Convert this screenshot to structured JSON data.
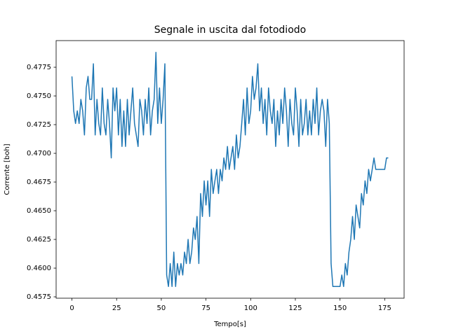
{
  "chart_data": {
    "type": "line",
    "title": "Segnale in uscita dal fotodiodo",
    "x_label": "Tempo[s]",
    "y_label": "Corrente [boh]",
    "color": "#1f77b4",
    "x": [
      0,
      1,
      2,
      3,
      4,
      5,
      6,
      7,
      8,
      9,
      10,
      11,
      12,
      13,
      14,
      15,
      16,
      17,
      18,
      19,
      20,
      21,
      22,
      23,
      24,
      25,
      26,
      27,
      28,
      29,
      30,
      31,
      32,
      33,
      34,
      35,
      36,
      37,
      38,
      39,
      40,
      41,
      42,
      43,
      44,
      45,
      46,
      47,
      48,
      49,
      50,
      51,
      52,
      53,
      54,
      55,
      56,
      57,
      58,
      59,
      60,
      61,
      62,
      63,
      64,
      65,
      66,
      67,
      68,
      69,
      70,
      71,
      72,
      73,
      74,
      75,
      76,
      77,
      78,
      79,
      80,
      81,
      82,
      83,
      84,
      85,
      86,
      87,
      88,
      89,
      90,
      91,
      92,
      93,
      94,
      95,
      96,
      97,
      98,
      99,
      100,
      101,
      102,
      103,
      104,
      105,
      106,
      107,
      108,
      109,
      110,
      111,
      112,
      113,
      114,
      115,
      116,
      117,
      118,
      119,
      120,
      121,
      122,
      123,
      124,
      125,
      126,
      127,
      128,
      129,
      130,
      131,
      132,
      133,
      134,
      135,
      136,
      137,
      138,
      139,
      140,
      141,
      142,
      143,
      144,
      145,
      146,
      147,
      148,
      149,
      150,
      151,
      152,
      153,
      154,
      155,
      156,
      157,
      158,
      159,
      160,
      161,
      162,
      163,
      164,
      165,
      166,
      167,
      168,
      169,
      170,
      171,
      172,
      173,
      174,
      175,
      176,
      177
    ],
    "values": [
      0.4767,
      0.4737,
      0.4726,
      0.4737,
      0.4726,
      0.4747,
      0.4737,
      0.4716,
      0.4757,
      0.4767,
      0.4747,
      0.4747,
      0.4778,
      0.4716,
      0.4747,
      0.4726,
      0.4716,
      0.4757,
      0.4726,
      0.4716,
      0.4747,
      0.4726,
      0.4696,
      0.4757,
      0.4737,
      0.4757,
      0.4716,
      0.4747,
      0.4706,
      0.4737,
      0.4706,
      0.4747,
      0.4716,
      0.4737,
      0.4757,
      0.4726,
      0.4716,
      0.4706,
      0.4747,
      0.4737,
      0.4716,
      0.4747,
      0.4726,
      0.4757,
      0.4716,
      0.4737,
      0.4747,
      0.4788,
      0.4726,
      0.4757,
      0.4726,
      0.4747,
      0.4778,
      0.4594,
      0.4584,
      0.4604,
      0.4584,
      0.4614,
      0.4584,
      0.4604,
      0.4594,
      0.4604,
      0.4594,
      0.4614,
      0.4604,
      0.4625,
      0.4604,
      0.4614,
      0.4635,
      0.4625,
      0.4645,
      0.4604,
      0.4665,
      0.4645,
      0.4676,
      0.4655,
      0.4676,
      0.4645,
      0.4686,
      0.4665,
      0.4676,
      0.4686,
      0.4665,
      0.4686,
      0.4676,
      0.4696,
      0.4686,
      0.4706,
      0.4686,
      0.4696,
      0.4706,
      0.4686,
      0.4716,
      0.4696,
      0.4706,
      0.4726,
      0.4747,
      0.4716,
      0.4757,
      0.4726,
      0.4737,
      0.4767,
      0.4747,
      0.4757,
      0.4778,
      0.4737,
      0.4757,
      0.4726,
      0.4747,
      0.4716,
      0.4757,
      0.4737,
      0.4726,
      0.4747,
      0.4706,
      0.4737,
      0.4716,
      0.4747,
      0.4726,
      0.4757,
      0.4737,
      0.4706,
      0.4747,
      0.4726,
      0.4716,
      0.4757,
      0.4737,
      0.4706,
      0.4747,
      0.4716,
      0.4726,
      0.4747,
      0.4716,
      0.4737,
      0.4716,
      0.4747,
      0.4726,
      0.4757,
      0.4716,
      0.4737,
      0.4747,
      0.4737,
      0.4706,
      0.4747,
      0.4726,
      0.4604,
      0.4584,
      0.4584,
      0.4584,
      0.4584,
      0.4584,
      0.4594,
      0.4584,
      0.4604,
      0.4594,
      0.4614,
      0.4625,
      0.4645,
      0.4625,
      0.4655,
      0.4645,
      0.4635,
      0.4665,
      0.4655,
      0.4676,
      0.4665,
      0.4686,
      0.4676,
      0.4686,
      0.4696,
      0.4686,
      0.4686,
      0.4686,
      0.4686,
      0.4686,
      0.4686,
      0.4696,
      0.4696
    ],
    "xlim": [
      -8.85,
      185.85
    ],
    "ylim": [
      0.45738,
      0.47982
    ],
    "xticks": [
      0,
      25,
      50,
      75,
      100,
      125,
      150,
      175
    ],
    "yticks": [
      0.4575,
      {
        "value": 0.46,
        "label": "0.4600"
      },
      0.4625,
      {
        "value": 0.465,
        "label": "0.4650"
      },
      0.4675,
      {
        "value": 0.47,
        "label": "0.4700"
      },
      0.4725,
      {
        "value": 0.475,
        "label": "0.4750"
      },
      0.4775
    ],
    "grid": false
  }
}
